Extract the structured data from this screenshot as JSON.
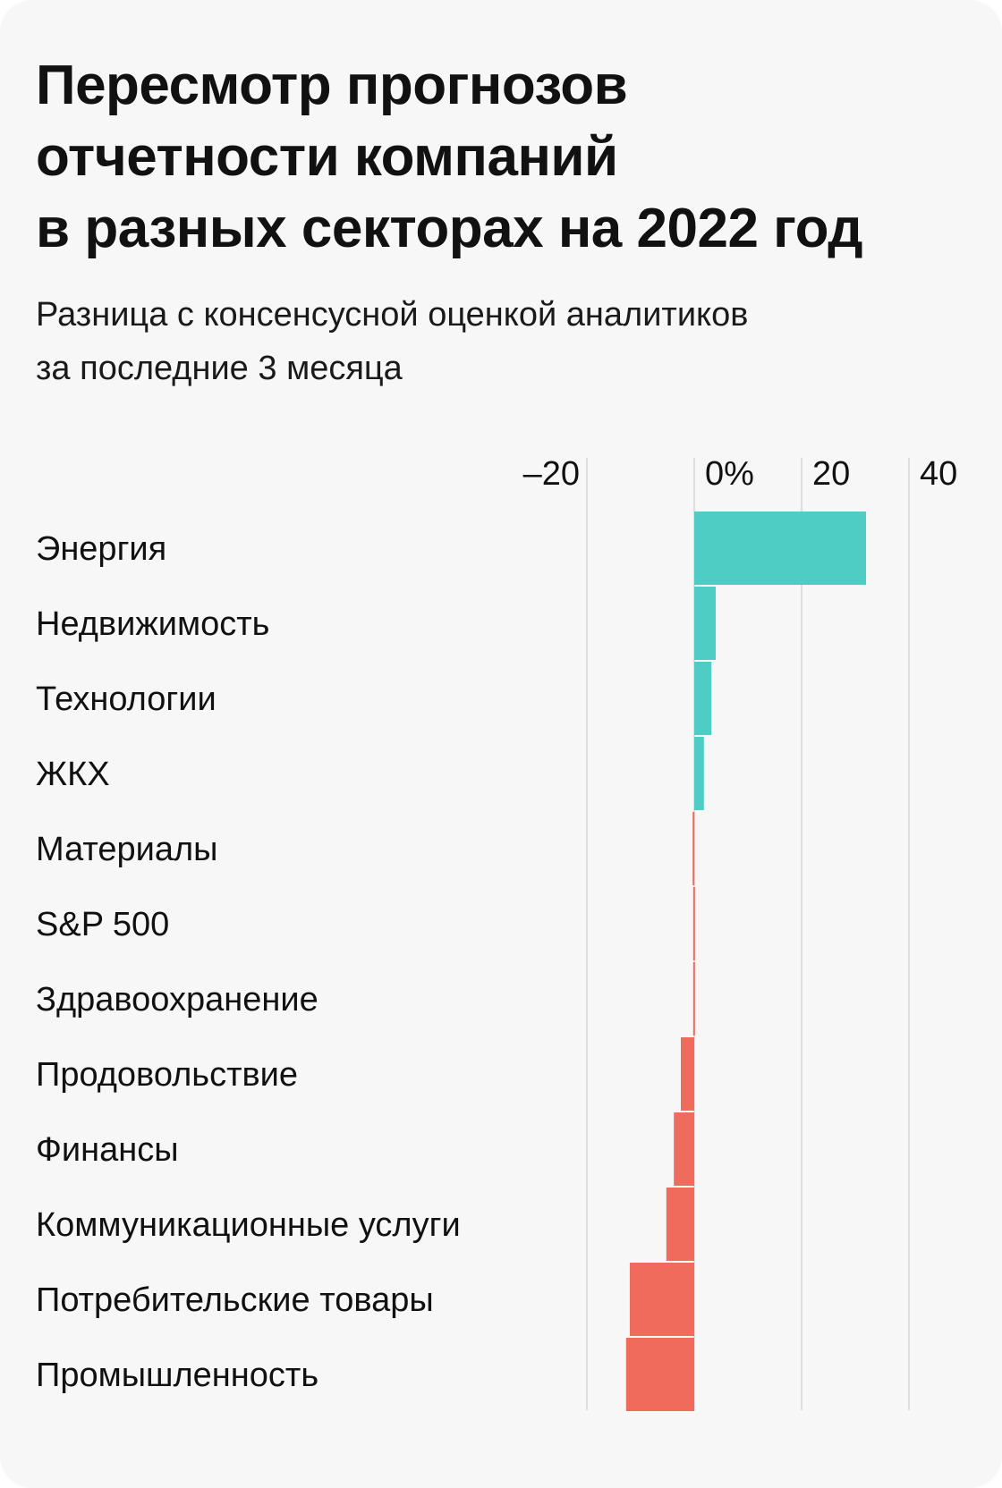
{
  "title_lines": [
    "Пересмотр прогнозов",
    "отчетности компаний",
    "в разных секторах на 2022 год"
  ],
  "subtitle_lines": [
    "Разница с консенсусной оценкой аналитиков",
    "за последние 3 месяца"
  ],
  "colors": {
    "positive": "#4ecdc4",
    "negative": "#ef6b5b",
    "grid": "#d6d6d6",
    "background": "#f7f7f7",
    "text": "#111111"
  },
  "chart_data": {
    "type": "bar",
    "orientation": "horizontal",
    "title": "Пересмотр прогнозов отчетности компаний в разных секторах на 2022 год",
    "subtitle": "Разница с консенсусной оценкой аналитиков за последние 3 месяца",
    "xlim": [
      -20,
      40
    ],
    "ticks": [
      -20,
      0,
      20,
      40
    ],
    "tick_labels": [
      "–20",
      "0%",
      "20",
      "40"
    ],
    "grid": true,
    "categories": [
      "Энергия",
      "Недвижимость",
      "Технологии",
      "ЖКХ",
      "Материалы",
      "S&P 500",
      "Здравоохранение",
      "Продовольствие",
      "Финансы",
      "Коммуникационные услуги",
      "Потребительские товары",
      "Промышленность"
    ],
    "values": [
      32,
      4,
      3.2,
      1.8,
      -0.3,
      -0.2,
      -0.2,
      -2.5,
      -3.8,
      -5.2,
      -12,
      -12.7
    ]
  }
}
